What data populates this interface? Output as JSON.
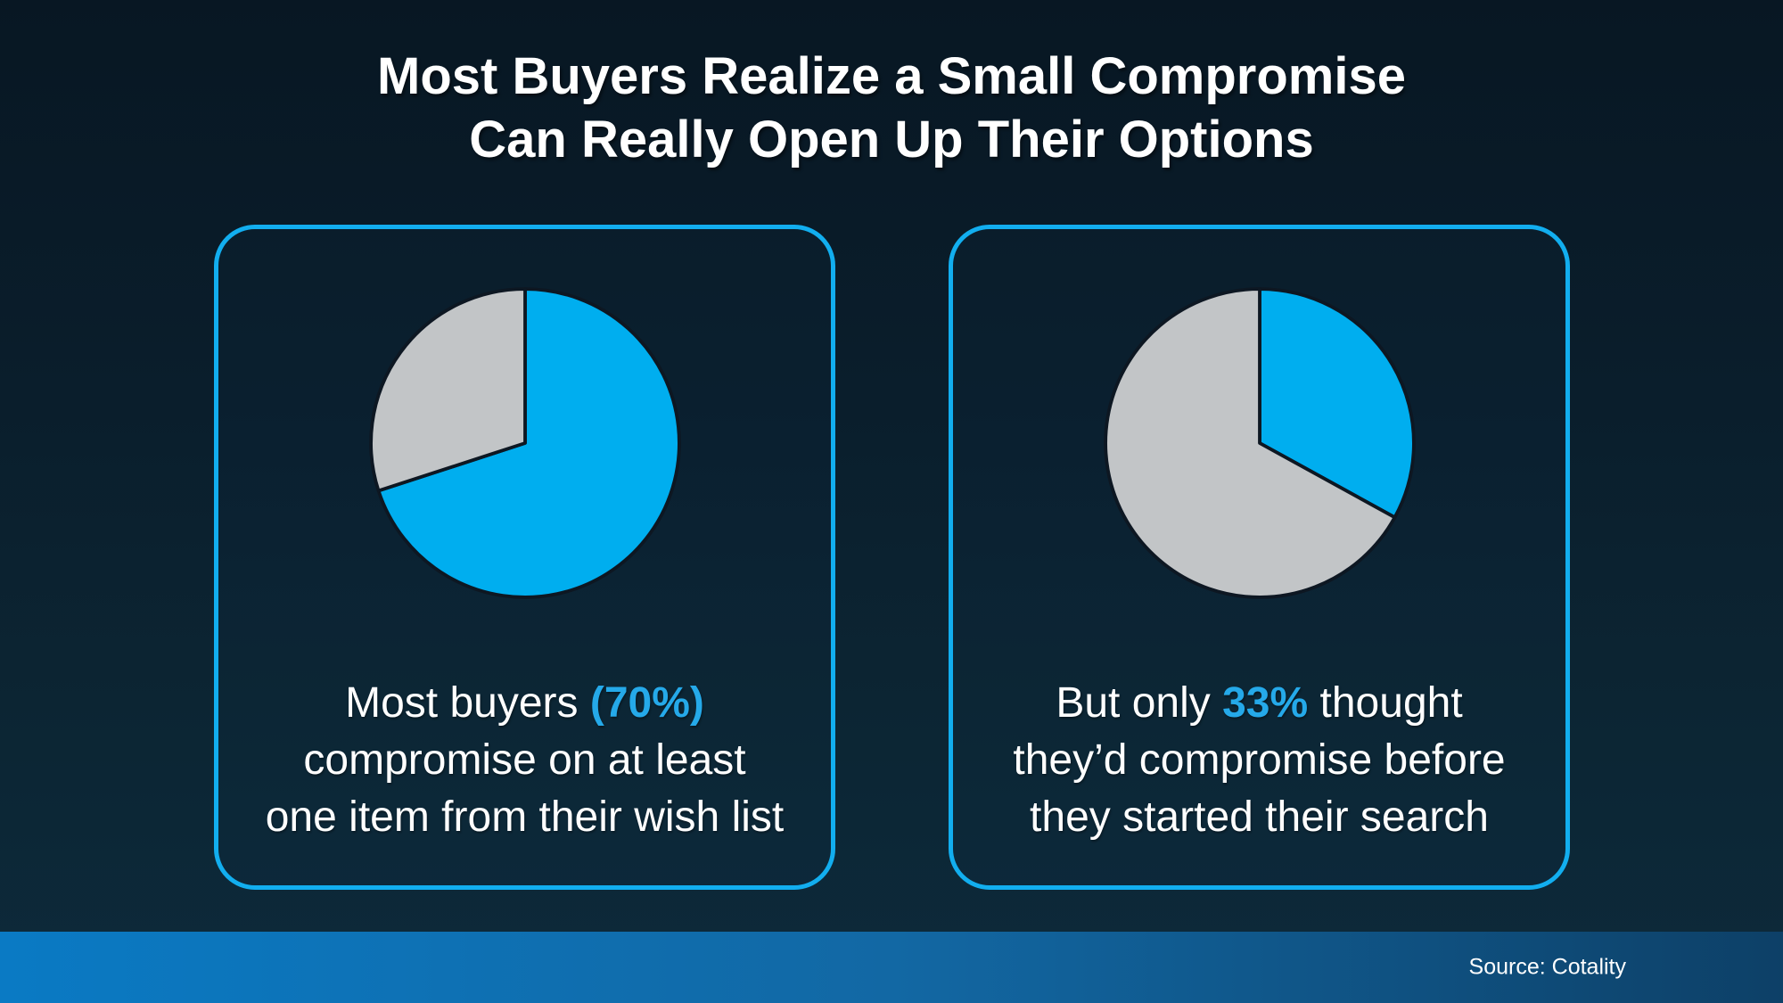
{
  "title": {
    "line1": "Most Buyers Realize a Small Compromise",
    "line2": "Can Really Open Up Their Options"
  },
  "cards": [
    {
      "id": "most-buyers-compromise",
      "caption_lines": [
        [
          {
            "t": "Most buyers ",
            "em": false
          },
          {
            "t": "(70%)",
            "em": true
          }
        ],
        [
          {
            "t": "compromise on at least",
            "em": false
          }
        ],
        [
          {
            "t": "one item from their wish list",
            "em": false
          }
        ]
      ]
    },
    {
      "id": "expected-compromise",
      "caption_lines": [
        [
          {
            "t": "But only ",
            "em": false
          },
          {
            "t": "33%",
            "em": true
          },
          {
            "t": " thought",
            "em": false
          }
        ],
        [
          {
            "t": "they’d compromise before",
            "em": false
          }
        ],
        [
          {
            "t": "they started their search",
            "em": false
          }
        ]
      ]
    }
  ],
  "chart_data": [
    {
      "type": "pie",
      "caption": "Most buyers (70%) compromise on at least one item from their wish list",
      "labels": [
        "70%",
        "30%"
      ],
      "values": [
        70,
        30
      ],
      "colors": [
        "#00AEEF",
        "#C2C5C7"
      ],
      "start_angle_deg": 0,
      "direction": "clockwise",
      "legend": "none"
    },
    {
      "type": "pie",
      "caption": "But only 33% thought they’d compromise before they started their search",
      "labels": [
        "33%",
        "67%"
      ],
      "values": [
        33,
        67
      ],
      "colors": [
        "#00AEEF",
        "#C2C5C7"
      ],
      "start_angle_deg": 0,
      "direction": "clockwise",
      "legend": "none"
    }
  ],
  "footer": {
    "source_label": "Source: Cotality"
  },
  "colors": {
    "accent_blue": "#00AEEF",
    "emphasis_text_blue": "#25A9E9",
    "pie_gray": "#C2C5C7",
    "pie_outline": "#0d1722",
    "card_border_blue": "#12AEEF",
    "footer_gradient_left": "#0A7AC4",
    "footer_gradient_right": "#0D4067"
  }
}
